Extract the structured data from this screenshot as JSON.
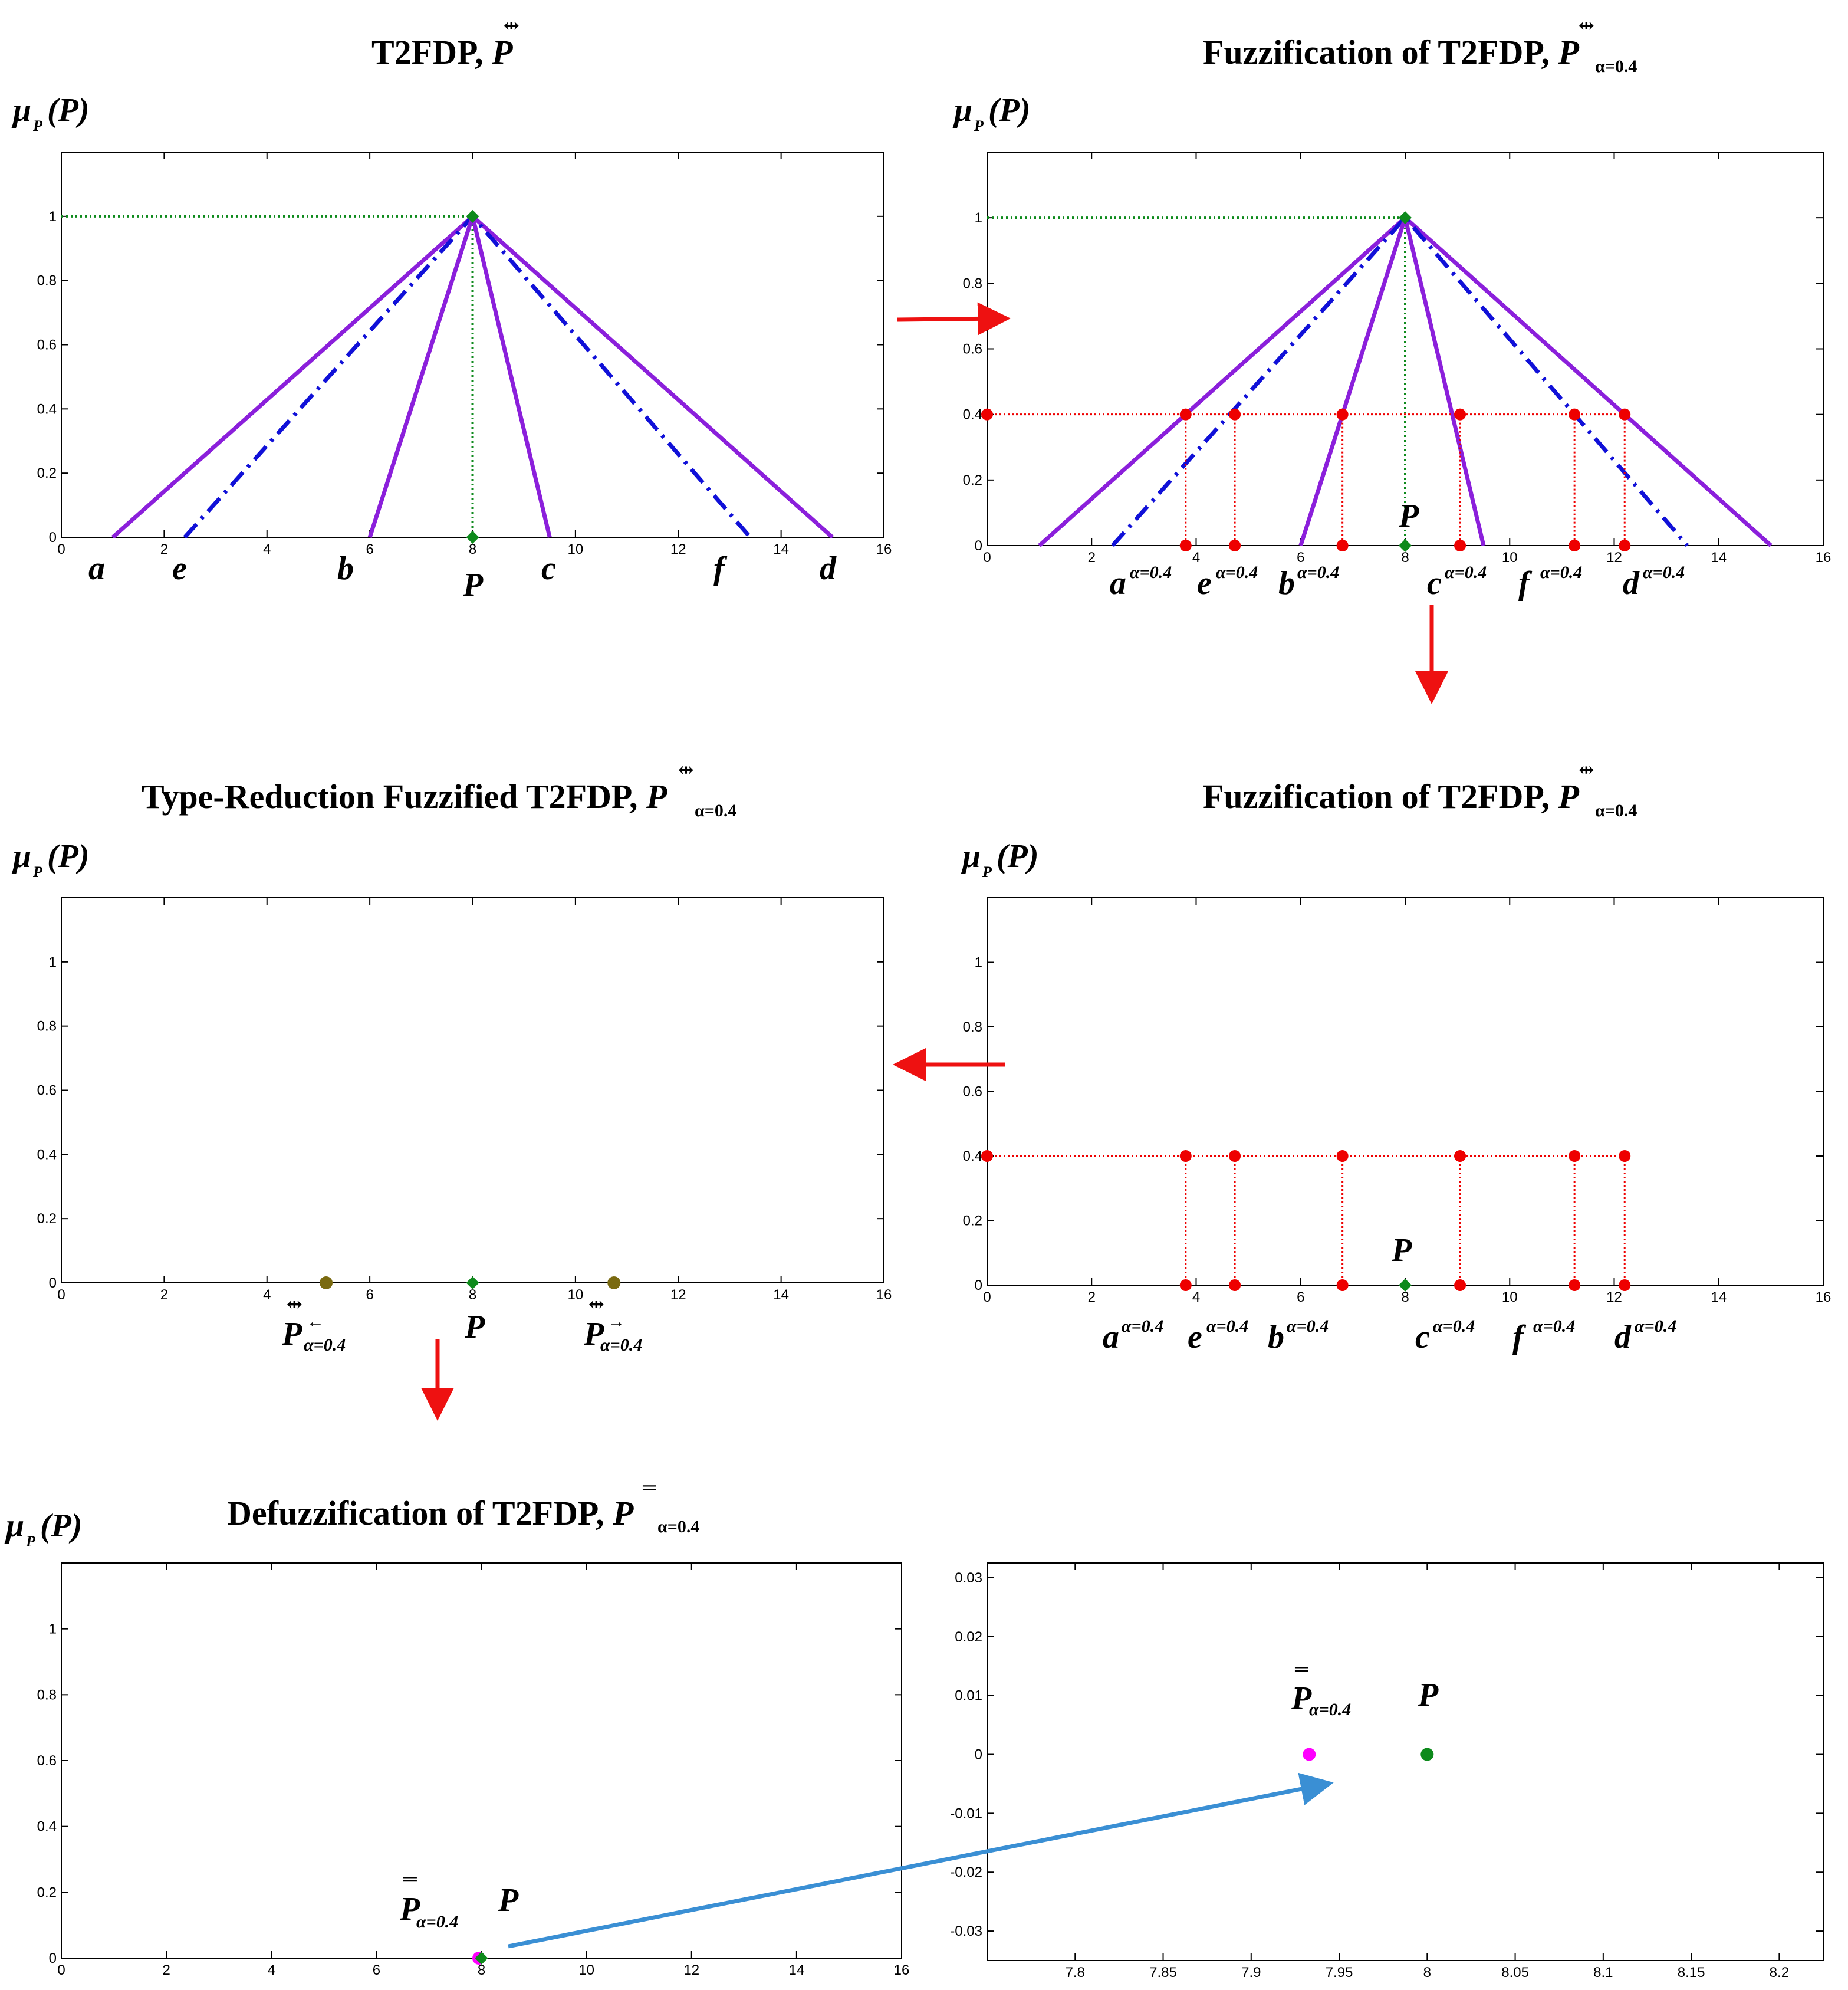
{
  "panels": {
    "t2fdp": {
      "title": "T2FDP,",
      "title_symbol": "P"
    },
    "fuzzification_top": {
      "title": "Fuzzification of T2FDP,",
      "title_symbol": "P",
      "title_subscript": "α=0.4"
    },
    "type_reduction": {
      "title": "Type-Reduction Fuzzified T2FDP,",
      "title_symbol": "P",
      "title_subscript": "α=0.4"
    },
    "fuzzification_bottom": {
      "title": "Fuzzification of T2FDP,",
      "title_symbol": "P",
      "title_subscript": "α=0.4"
    },
    "defuzzification": {
      "title": "Defuzzification of T2FDP,",
      "title_symbol": "P",
      "title_subscript": "α=0.4"
    },
    "zoom": {
      "title": ""
    }
  },
  "y_axis_label": {
    "mu": "μ",
    "sub": "P",
    "arg": "(P)"
  },
  "point_labels": {
    "a": "a",
    "e": "e",
    "b": "b",
    "p": "P",
    "c": "c",
    "f": "f",
    "d": "d",
    "alpha_sup": "α=0.4",
    "left_sub": "α=0.4",
    "left_arrow": "←",
    "right_sub": "α=0.4",
    "right_arrow": "→",
    "defuzz_sub": "α=0.4"
  },
  "colors": {
    "purple": "#8B1FDB",
    "blue": "#1010D8",
    "green": "#0E8A1C",
    "red": "#EE0000",
    "olive": "#7A6A10",
    "magenta": "#FF00FF",
    "arrow_red": "#EE1111",
    "arrow_blue": "#3A8FD4"
  },
  "chart_data": [
    {
      "id": "t2fdp",
      "type": "line",
      "title": "T2FDP, P",
      "xlim": [
        0,
        16
      ],
      "ylim": [
        0,
        1.2
      ],
      "xticks": [
        0,
        2,
        4,
        6,
        8,
        10,
        12,
        14,
        16
      ],
      "yticks": [
        0,
        0.2,
        0.4,
        0.6,
        0.8,
        1
      ],
      "ytick_labels": [
        "0",
        "0.2",
        "0.4",
        "0.6",
        "0.8",
        "1"
      ],
      "series": [
        {
          "name": "outer",
          "style": "solid",
          "color": "purple",
          "x": [
            1,
            8,
            15
          ],
          "y": [
            0,
            1,
            0
          ]
        },
        {
          "name": "middle",
          "style": "dashdot",
          "color": "blue",
          "x": [
            2.4,
            8,
            13.4
          ],
          "y": [
            0,
            1,
            0
          ]
        },
        {
          "name": "inner",
          "style": "solid",
          "color": "purple",
          "x": [
            6,
            8,
            9.5
          ],
          "y": [
            0,
            1,
            0
          ]
        }
      ],
      "guides": [
        {
          "color": "green",
          "x": [
            0,
            8
          ],
          "y": [
            1,
            1
          ]
        },
        {
          "color": "green",
          "x": [
            8,
            8
          ],
          "y": [
            0,
            1
          ]
        }
      ],
      "points": [
        {
          "x": 8,
          "y": 0,
          "color": "green",
          "marker": "diamond"
        },
        {
          "x": 8,
          "y": 1,
          "color": "green",
          "marker": "diamond"
        }
      ]
    },
    {
      "id": "fuzzification_top",
      "type": "line",
      "title": "Fuzzification of T2FDP, P α=0.4",
      "xlim": [
        0,
        16
      ],
      "ylim": [
        0,
        1.2
      ],
      "xticks": [
        0,
        2,
        4,
        6,
        8,
        10,
        12,
        14,
        16
      ],
      "yticks": [
        0,
        0.2,
        0.4,
        0.6,
        0.8,
        1
      ],
      "ytick_labels": [
        "0",
        "0.2",
        "0.4",
        "0.6",
        "0.8",
        "1"
      ],
      "series": [
        {
          "name": "outer",
          "style": "solid",
          "color": "purple",
          "x": [
            1,
            8,
            15
          ],
          "y": [
            0,
            1,
            0
          ]
        },
        {
          "name": "middle",
          "style": "dashdot",
          "color": "blue",
          "x": [
            2.4,
            8,
            13.4
          ],
          "y": [
            0,
            1,
            0
          ]
        },
        {
          "name": "inner",
          "style": "solid",
          "color": "purple",
          "x": [
            6,
            8,
            9.5
          ],
          "y": [
            0,
            1,
            0
          ]
        }
      ],
      "guides": [
        {
          "color": "green",
          "x": [
            0,
            8
          ],
          "y": [
            1,
            1
          ]
        },
        {
          "color": "green",
          "x": [
            8,
            8
          ],
          "y": [
            0,
            1
          ]
        }
      ],
      "alpha_cut": 0.4,
      "cut_x": [
        3.8,
        4.74,
        6.8,
        9.05,
        11.24,
        12.2
      ],
      "points": [
        {
          "x": 8,
          "y": 0,
          "color": "green",
          "marker": "diamond"
        },
        {
          "x": 8,
          "y": 1,
          "color": "green",
          "marker": "diamond"
        }
      ]
    },
    {
      "id": "type_reduction",
      "type": "scatter",
      "title": "Type-Reduction Fuzzified T2FDP, P α=0.4",
      "xlim": [
        0,
        16
      ],
      "ylim": [
        0,
        1.2
      ],
      "xticks": [
        0,
        2,
        4,
        6,
        8,
        10,
        12,
        14,
        16
      ],
      "yticks": [
        0,
        0.2,
        0.4,
        0.6,
        0.8,
        1
      ],
      "ytick_labels": [
        "0",
        "0.2",
        "0.4",
        "0.6",
        "0.8",
        "1"
      ],
      "points": [
        {
          "x": 5.15,
          "y": 0,
          "color": "olive",
          "marker": "circle"
        },
        {
          "x": 8,
          "y": 0,
          "color": "green",
          "marker": "diamond"
        },
        {
          "x": 10.75,
          "y": 0,
          "color": "olive",
          "marker": "circle"
        }
      ]
    },
    {
      "id": "fuzzification_bottom",
      "type": "scatter",
      "title": "Fuzzification of T2FDP, P α=0.4",
      "xlim": [
        0,
        16
      ],
      "ylim": [
        0,
        1.2
      ],
      "xticks": [
        0,
        2,
        4,
        6,
        8,
        10,
        12,
        14,
        16
      ],
      "yticks": [
        0,
        0.2,
        0.4,
        0.6,
        0.8,
        1
      ],
      "ytick_labels": [
        "0",
        "0.2",
        "0.4",
        "0.6",
        "0.8",
        "1"
      ],
      "alpha_cut": 0.4,
      "cut_x": [
        3.8,
        4.74,
        6.8,
        9.05,
        11.24,
        12.2
      ],
      "points": [
        {
          "x": 8,
          "y": 0,
          "color": "green",
          "marker": "diamond"
        }
      ]
    },
    {
      "id": "defuzzification",
      "type": "scatter",
      "title": "Defuzzification of T2FDP, P α=0.4",
      "xlim": [
        0,
        16
      ],
      "ylim": [
        0,
        1.2
      ],
      "xticks": [
        0,
        2,
        4,
        6,
        8,
        10,
        12,
        14,
        16
      ],
      "yticks": [
        0,
        0.2,
        0.4,
        0.6,
        0.8,
        1
      ],
      "ytick_labels": [
        "0",
        "0.2",
        "0.4",
        "0.6",
        "0.8",
        "1"
      ],
      "points": [
        {
          "x": 7.95,
          "y": 0,
          "color": "magenta",
          "marker": "circle"
        },
        {
          "x": 8,
          "y": 0,
          "color": "green",
          "marker": "diamond"
        }
      ]
    },
    {
      "id": "zoom",
      "type": "scatter",
      "title": "",
      "xlim": [
        7.75,
        8.225
      ],
      "ylim": [
        -0.035,
        0.0325
      ],
      "xticks": [
        7.8,
        7.85,
        7.9,
        7.95,
        8,
        8.05,
        8.1,
        8.15,
        8.2
      ],
      "xtick_labels": [
        "7.8",
        "7.85",
        "7.9",
        "7.95",
        "8",
        "8.05",
        "8.1",
        "8.15",
        "8.2"
      ],
      "yticks": [
        -0.03,
        -0.02,
        -0.01,
        0,
        0.01,
        0.02,
        0.03
      ],
      "ytick_labels": [
        "-0.03",
        "-0.02",
        "-0.01",
        "0",
        "0.01",
        "0.02",
        "0.03"
      ],
      "points": [
        {
          "x": 7.933,
          "y": 0,
          "color": "magenta",
          "marker": "circle"
        },
        {
          "x": 8.0,
          "y": 0,
          "color": "green",
          "marker": "circle"
        }
      ]
    }
  ]
}
